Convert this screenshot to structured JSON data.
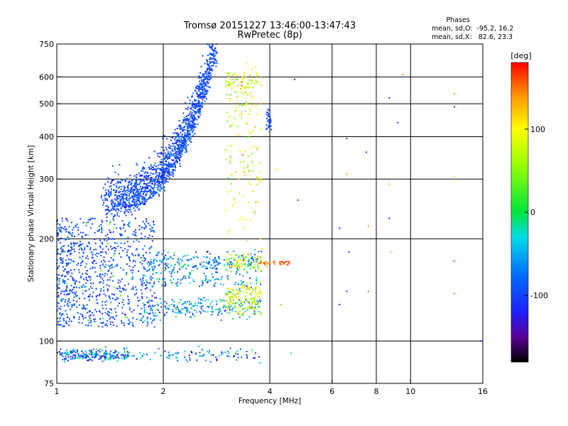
{
  "chart_data": {
    "type": "scatter",
    "title": "Tromsø 20151227 13:46:00-13:47:43",
    "subtitle": "RwPretec (8p)",
    "xlabel": "Frequency [MHz]",
    "ylabel": "Stationary phase Virtual Height [km]",
    "xscale": "log",
    "yscale": "log",
    "xlim": [
      1,
      16
    ],
    "ylim": [
      75,
      750
    ],
    "x_ticks": [
      1,
      2,
      4,
      6,
      8,
      10,
      16
    ],
    "y_ticks": [
      75,
      100,
      200,
      300,
      400,
      500,
      600,
      750
    ],
    "grid": true,
    "info_title": "Phases",
    "info_lines": [
      "mean, sd,O:  -95.2, 16.2",
      "mean, sd,X:   82.6, 23.3"
    ],
    "colorbar": {
      "label": "[deg]",
      "range": [
        -180,
        180
      ],
      "ticks": [
        -100,
        0,
        100
      ]
    },
    "traces": [
      {
        "x_start": 1.35,
        "x_end": 2.8,
        "y_min": 230,
        "y_max": 640,
        "phase_mean": -95
      },
      {
        "x_start": 1.0,
        "x_end": 1.9,
        "y_min": 110,
        "y_max": 230,
        "phase_mean": -95
      },
      {
        "x_start": 1.75,
        "x_end": 3.8,
        "y_min": 120,
        "y_max": 185,
        "phase_mean": -60
      },
      {
        "x_start": 3.0,
        "x_end": 3.8,
        "y_min": 120,
        "y_max": 600,
        "phase_mean": 82.6
      },
      {
        "x_start": 1.0,
        "x_end": 3.8,
        "y_min": 88,
        "y_max": 97,
        "phase_mean": -70
      }
    ],
    "outliers": [
      {
        "x": 4.7,
        "y": 590,
        "phase": -120
      },
      {
        "x": 6.6,
        "y": 395,
        "phase": -110
      },
      {
        "x": 6.6,
        "y": 310,
        "phase": 140
      },
      {
        "x": 7.5,
        "y": 360,
        "phase": -110
      },
      {
        "x": 8.7,
        "y": 520,
        "phase": -100
      },
      {
        "x": 9.2,
        "y": 440,
        "phase": -110
      },
      {
        "x": 9.5,
        "y": 610,
        "phase": 150
      },
      {
        "x": 13.3,
        "y": 535,
        "phase": 140
      },
      {
        "x": 13.3,
        "y": 490,
        "phase": -110
      },
      {
        "x": 13.3,
        "y": 305,
        "phase": 110
      },
      {
        "x": 8.7,
        "y": 290,
        "phase": 120
      },
      {
        "x": 8.7,
        "y": 230,
        "phase": -115
      },
      {
        "x": 6.3,
        "y": 215,
        "phase": -110
      },
      {
        "x": 7.6,
        "y": 218,
        "phase": 140
      },
      {
        "x": 8.8,
        "y": 183,
        "phase": 50
      },
      {
        "x": 6.7,
        "y": 183,
        "phase": -100
      },
      {
        "x": 13.3,
        "y": 172,
        "phase": 160
      },
      {
        "x": 6.3,
        "y": 128,
        "phase": -110
      },
      {
        "x": 7.6,
        "y": 140,
        "phase": 150
      },
      {
        "x": 6.6,
        "y": 140,
        "phase": -100
      },
      {
        "x": 13.3,
        "y": 138,
        "phase": 150
      },
      {
        "x": 4.3,
        "y": 128,
        "phase": 130
      },
      {
        "x": 4.6,
        "y": 92,
        "phase": 0
      },
      {
        "x": 15.8,
        "y": 100,
        "phase": -110
      },
      {
        "x": 4.8,
        "y": 260,
        "phase": -100
      },
      {
        "x": 4.2,
        "y": 320,
        "phase": 120
      }
    ]
  }
}
